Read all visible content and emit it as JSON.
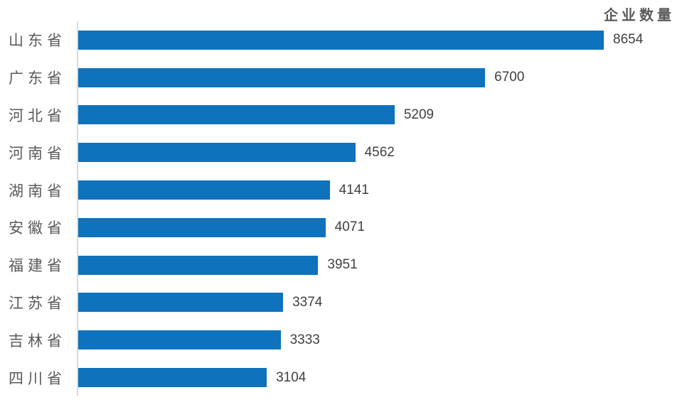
{
  "title": "企业数量",
  "colors": {
    "bar": "#0E72BC",
    "title_text": "#595959",
    "label_text": "#595959",
    "value_text": "#404040",
    "axis_line": "#D9D9D9",
    "background": "#FFFFFF"
  },
  "chart_data": {
    "type": "bar",
    "orientation": "horizontal",
    "title": "企业数量",
    "xlabel": "",
    "ylabel": "",
    "categories": [
      "山东省",
      "广东省",
      "河北省",
      "河南省",
      "湖南省",
      "安徽省",
      "福建省",
      "江苏省",
      "吉林省",
      "四川省"
    ],
    "values": [
      8654,
      6700,
      5209,
      4562,
      4141,
      4071,
      3951,
      3374,
      3333,
      3104
    ],
    "value_labels_shown": true,
    "xlim": [
      0,
      9000
    ],
    "grid": false,
    "legend": false,
    "sort_order": "descending"
  }
}
